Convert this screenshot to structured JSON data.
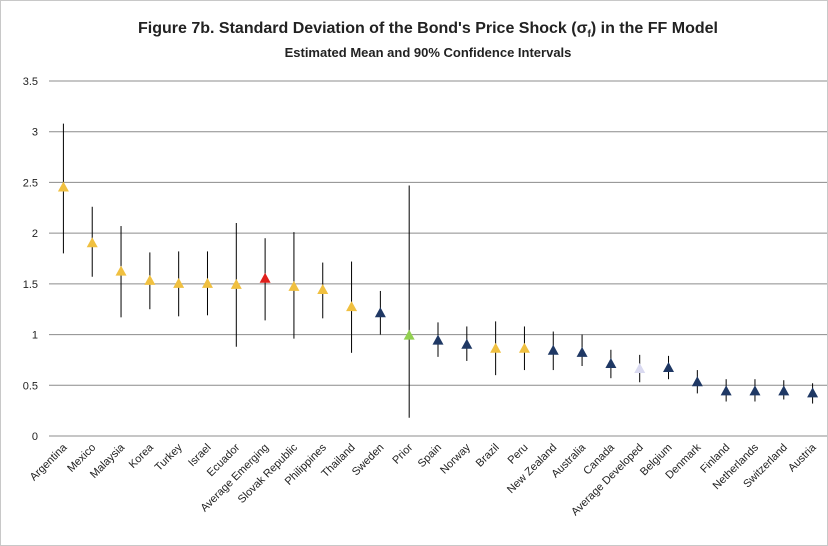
{
  "chart_data": {
    "type": "errorbar",
    "title": [
      "Figure 7b. Standard Deviation of the Bond's Price Shock (σ",
      "f",
      ") in the FF Model"
    ],
    "subtitle": "Estimated Mean and 90% Confidence Intervals",
    "categories": [
      "Argentina",
      "Mexico",
      "Malaysia",
      "Korea",
      "Turkey",
      "Israel",
      "Ecuador",
      "Average Emerging",
      "Slovak Republic",
      "Philippines",
      "Thailand",
      "Sweden",
      "Prior",
      "Spain",
      "Norway",
      "Brazil",
      "Peru",
      "New Zealand",
      "Australia",
      "Canada",
      "Average Developed",
      "Belgium",
      "Denmark",
      "Finland",
      "Netherlands",
      "Switzerland",
      "Austria"
    ],
    "values": [
      2.45,
      1.9,
      1.62,
      1.53,
      1.5,
      1.5,
      1.49,
      1.55,
      1.47,
      1.44,
      1.27,
      1.21,
      0.99,
      0.94,
      0.9,
      0.86,
      0.86,
      0.84,
      0.82,
      0.71,
      0.66,
      0.67,
      0.53,
      0.44,
      0.44,
      0.44,
      0.42
    ],
    "lower": [
      1.8,
      1.57,
      1.17,
      1.25,
      1.18,
      1.19,
      0.88,
      1.14,
      0.96,
      1.16,
      0.82,
      1.0,
      0.18,
      0.78,
      0.74,
      0.6,
      0.65,
      0.65,
      0.69,
      0.57,
      0.53,
      0.56,
      0.42,
      0.34,
      0.34,
      0.36,
      0.32
    ],
    "upper": [
      3.08,
      2.26,
      2.07,
      1.81,
      1.82,
      1.82,
      2.1,
      1.95,
      2.01,
      1.71,
      1.72,
      1.43,
      2.47,
      1.12,
      1.08,
      1.13,
      1.08,
      1.03,
      1.0,
      0.85,
      0.8,
      0.79,
      0.65,
      0.56,
      0.56,
      0.55,
      0.52
    ],
    "colors": [
      "#F0C040",
      "#F0C040",
      "#F0C040",
      "#F0C040",
      "#F0C040",
      "#F0C040",
      "#F0C040",
      "#E0201C",
      "#F0C040",
      "#F0C040",
      "#F0C040",
      "#1F3864",
      "#92D050",
      "#1F3864",
      "#1F3864",
      "#F0C040",
      "#F0C040",
      "#1F3864",
      "#1F3864",
      "#1F3864",
      "#D9D9F0",
      "#1F3864",
      "#1F3864",
      "#1F3864",
      "#1F3864",
      "#1F3864",
      "#1F3864"
    ],
    "ylim": [
      0,
      3.5
    ],
    "yticks": [
      0,
      0.5,
      1,
      1.5,
      2,
      2.5,
      3,
      3.5
    ],
    "grid": true
  }
}
